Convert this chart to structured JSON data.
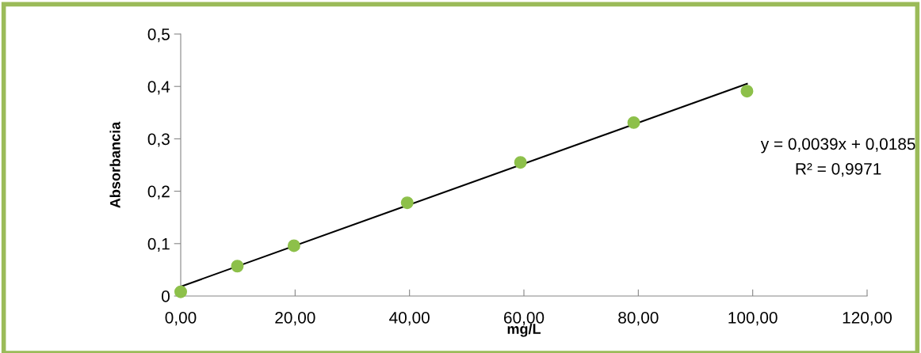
{
  "chart_data": {
    "type": "scatter",
    "xlabel": "mg/L",
    "ylabel": "Absorbancia",
    "xlim": [
      0,
      120
    ],
    "ylim": [
      0,
      0.5
    ],
    "xticks": [
      {
        "value": 0,
        "label": "0,00"
      },
      {
        "value": 20,
        "label": "20,00"
      },
      {
        "value": 40,
        "label": "40,00"
      },
      {
        "value": 60,
        "label": "60,00"
      },
      {
        "value": 80,
        "label": "80,00"
      },
      {
        "value": 100,
        "label": "100,00"
      },
      {
        "value": 120,
        "label": "120,00"
      }
    ],
    "yticks": [
      0,
      {
        "value": 0.1,
        "label": "0,1"
      },
      {
        "value": 0.2,
        "label": "0,2"
      },
      {
        "value": 0.3,
        "label": "0,3"
      },
      {
        "value": 0.4,
        "label": "0,4"
      },
      {
        "value": 0.5,
        "label": "0,5"
      }
    ],
    "marker": "circle",
    "grid": false,
    "legend": false,
    "series": [
      {
        "color": "#8dc04a",
        "x": [
          0,
          9.9,
          19.8,
          39.6,
          59.4,
          79.2,
          99.0
        ],
        "values": [
          0.008,
          0.057,
          0.096,
          0.178,
          0.255,
          0.331,
          0.391
        ]
      },
      {
        "type": "line",
        "color": "#000000",
        "x": [
          0,
          99.0
        ],
        "values": [
          0.018,
          0.405
        ],
        "marker": "none",
        "line_style": "solid"
      }
    ],
    "annotations": [
      "y = 0,0039x + 0,0185",
      "R² = 0,9971"
    ]
  }
}
